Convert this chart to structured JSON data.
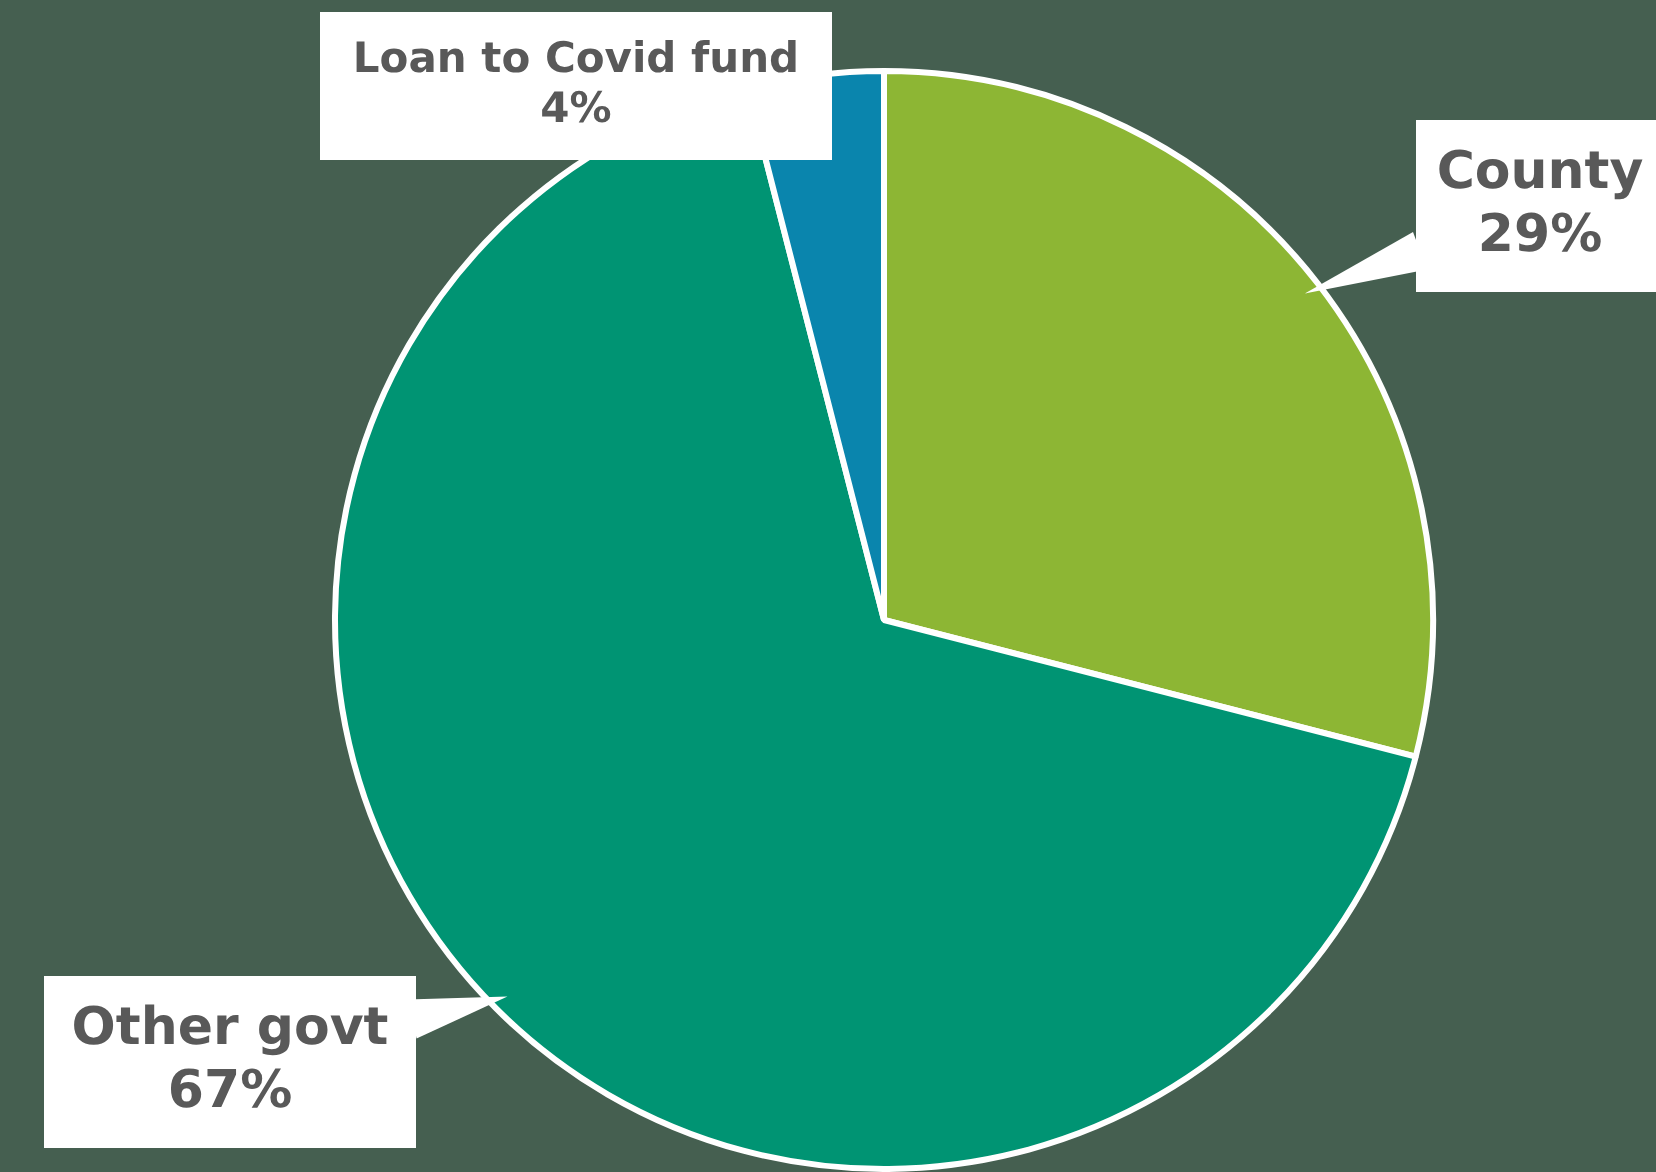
{
  "chart_data": {
    "type": "pie",
    "categories": [
      "County",
      "Other govt",
      "Loan to Covid fund"
    ],
    "values": [
      29,
      67,
      4
    ],
    "value_labels": [
      "29%",
      "67%",
      "4%"
    ],
    "colors": [
      "#8db634",
      "#009473",
      "#0a85ad"
    ],
    "legend": false
  }
}
